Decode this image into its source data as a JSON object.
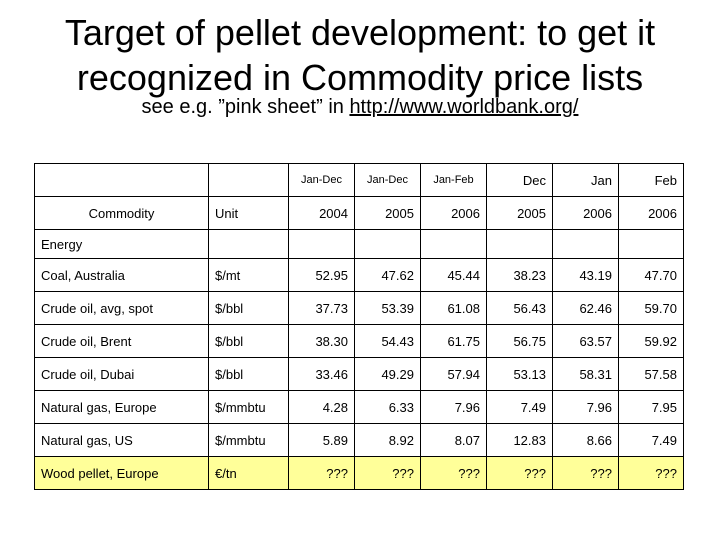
{
  "title_line1": "Target of pellet development: to get it",
  "title_line2": "recognized in Commodity price lists",
  "subtitle_prefix": "see e.g. ”pink sheet” in ",
  "subtitle_link": "http://www.worldbank.org/",
  "table": {
    "period_headers": [
      "Jan-Dec",
      "Jan-Dec",
      "Jan-Feb",
      "Dec",
      "Jan",
      "Feb"
    ],
    "commodity_header": "Commodity",
    "unit_header": "Unit",
    "year_headers": [
      "2004",
      "2005",
      "2006",
      "2005",
      "2006",
      "2006"
    ],
    "section_label": "Energy",
    "rows": [
      {
        "commodity": "Coal, Australia",
        "unit": "$/mt",
        "values": [
          "52.95",
          "47.62",
          "45.44",
          "38.23",
          "43.19",
          "47.70"
        ]
      },
      {
        "commodity": "Crude oil, avg, spot",
        "unit": "$/bbl",
        "values": [
          "37.73",
          "53.39",
          "61.08",
          "56.43",
          "62.46",
          "59.70"
        ]
      },
      {
        "commodity": "Crude oil, Brent",
        "unit": "$/bbl",
        "values": [
          "38.30",
          "54.43",
          "61.75",
          "56.75",
          "63.57",
          "59.92"
        ]
      },
      {
        "commodity": "Crude oil, Dubai",
        "unit": "$/bbl",
        "values": [
          "33.46",
          "49.29",
          "57.94",
          "53.13",
          "58.31",
          "57.58"
        ]
      },
      {
        "commodity": "Natural gas, Europe",
        "unit": "$/mmbtu",
        "values": [
          "4.28",
          "6.33",
          "7.96",
          "7.49",
          "7.96",
          "7.95"
        ]
      },
      {
        "commodity": "Natural gas, US",
        "unit": "$/mmbtu",
        "values": [
          "5.89",
          "8.92",
          "8.07",
          "12.83",
          "8.66",
          "7.49"
        ]
      }
    ],
    "highlight_row": {
      "commodity": "Wood pellet, Europe",
      "unit": "€/tn",
      "values": [
        "???",
        "???",
        "???",
        "???",
        "???",
        "???"
      ]
    },
    "highlight_color": "#ffff99"
  }
}
